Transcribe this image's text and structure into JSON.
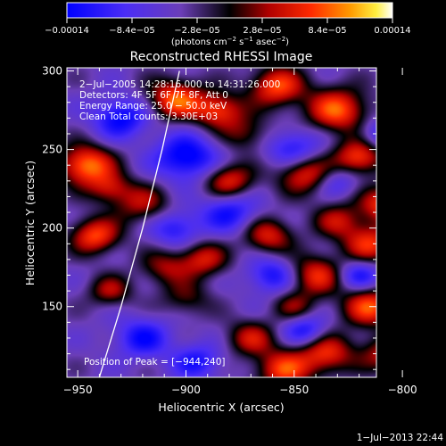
{
  "chart_data": {
    "type": "heatmap",
    "title": "Reconstructed RHESSI Image",
    "xlabel": "Heliocentric X (arcsec)",
    "ylabel": "Heliocentric Y (arcsec)",
    "xlim": [
      -955,
      -812
    ],
    "ylim": [
      105,
      302
    ],
    "xticks": [
      -950,
      -900,
      -850,
      -800
    ],
    "xtick_labels": [
      "−950",
      "−900",
      "−850",
      "−800"
    ],
    "yticks": [
      150,
      200,
      250,
      300
    ],
    "ytick_labels": [
      "150",
      "200",
      "250",
      "300"
    ],
    "colorbar": {
      "ticks": [
        -0.00014,
        -8.4e-05,
        -2.8e-05,
        2.8e-05,
        8.4e-05,
        0.00014
      ],
      "tick_labels": [
        "−0.00014",
        "−8.4e−05",
        "−2.8e−05",
        "2.8e−05",
        "8.4e−05",
        "0.00014"
      ],
      "unit_parts": {
        "a": "(photons cm",
        "b": "−2",
        "c": " s",
        "d": "−1",
        "e": " asec",
        "f": "−2",
        "g": ")"
      }
    },
    "annotations": {
      "time": "2−Jul−2005 14:28:16.000 to 14:31:26.000",
      "detectors": "Detectors: 4F 5F 6F 7F 8F, Att 0",
      "energy": "Energy Range: 25.0 − 50.0 keV",
      "clean": "Clean     Total counts: 3.30E+03",
      "peak": "Position of Peak = [−944,240]"
    },
    "peak": [
      -944,
      240
    ],
    "limb_points": [
      [
        -940,
        105
      ],
      [
        -930,
        150
      ],
      [
        -920,
        200
      ],
      [
        -911,
        250
      ],
      [
        -903,
        300
      ]
    ],
    "blobs": [
      [
        -946,
        240,
        1.0,
        9
      ],
      [
        -942,
        195,
        0.85,
        8
      ],
      [
        -905,
        282,
        0.9,
        9
      ],
      [
        -885,
        275,
        0.8,
        8
      ],
      [
        -858,
        290,
        0.85,
        9
      ],
      [
        -830,
        275,
        0.9,
        10
      ],
      [
        -820,
        245,
        0.85,
        8
      ],
      [
        -880,
        230,
        0.75,
        8
      ],
      [
        -845,
        235,
        0.8,
        9
      ],
      [
        -808,
        215,
        0.8,
        8
      ],
      [
        -815,
        190,
        0.75,
        9
      ],
      [
        -862,
        195,
        0.7,
        8
      ],
      [
        -840,
        170,
        0.75,
        9
      ],
      [
        -892,
        180,
        0.65,
        8
      ],
      [
        -920,
        215,
        0.55,
        9
      ],
      [
        -910,
        175,
        0.5,
        8
      ],
      [
        -935,
        160,
        0.55,
        7
      ],
      [
        -900,
        155,
        0.4,
        8
      ],
      [
        -870,
        130,
        0.6,
        8
      ],
      [
        -855,
        110,
        0.8,
        9
      ],
      [
        -835,
        120,
        0.75,
        9
      ],
      [
        -815,
        150,
        0.85,
        9
      ],
      [
        -808,
        120,
        0.6,
        8
      ],
      [
        -935,
        225,
        0.55,
        7
      ],
      [
        -872,
        260,
        0.45,
        8
      ],
      [
        -830,
        205,
        0.55,
        8
      ],
      [
        -850,
        150,
        0.45,
        7
      ],
      [
        -900,
        245,
        -0.8,
        10
      ],
      [
        -930,
        270,
        -0.7,
        9
      ],
      [
        -880,
        210,
        -0.6,
        9
      ],
      [
        -850,
        250,
        -0.6,
        9
      ],
      [
        -860,
        170,
        -0.6,
        8
      ],
      [
        -920,
        130,
        -0.6,
        9
      ],
      [
        -895,
        115,
        -0.55,
        8
      ],
      [
        -820,
        170,
        -0.6,
        7
      ],
      [
        -810,
        260,
        -0.5,
        7
      ],
      [
        -845,
        135,
        -0.6,
        7
      ],
      [
        -905,
        200,
        -0.55,
        8
      ],
      [
        -830,
        230,
        -0.4,
        7
      ]
    ],
    "grid": false,
    "colormap": "blue-purple-black-red-orange-yellow-white"
  },
  "footer": {
    "timestamp": "1−Jul−2013 22:44"
  }
}
